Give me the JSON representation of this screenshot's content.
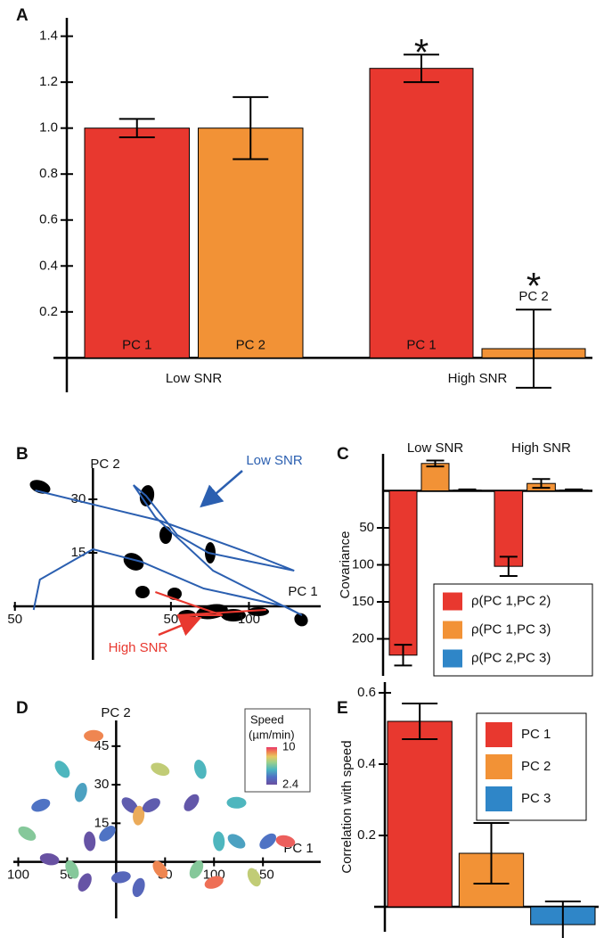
{
  "chart_data": [
    {
      "panel": "A",
      "type": "bar",
      "categories": [
        "Low SNR",
        "High SNR"
      ],
      "series": [
        {
          "name": "PC 1",
          "color": "#e8382f",
          "values": [
            1.0,
            1.26
          ],
          "errors": [
            0.04,
            0.06
          ],
          "annotations": [
            null,
            "*"
          ]
        },
        {
          "name": "PC 2",
          "color": "#f29236",
          "values": [
            1.0,
            0.04
          ],
          "errors": [
            0.135,
            0.17
          ],
          "annotations": [
            null,
            "*"
          ]
        }
      ],
      "ylim": [
        -0.15,
        1.48
      ],
      "yticks": [
        0.2,
        0.4,
        0.6,
        0.8,
        {
          "value": 1.0,
          "label": "1.0"
        },
        1.2,
        1.4
      ]
    },
    {
      "panel": "B",
      "type": "line",
      "xlabel": "PC 1",
      "ylabel": "PC 2",
      "xlim": [
        -51,
        146
      ],
      "ylim": [
        -15,
        38.75
      ],
      "xticks": [
        {
          "value": -50,
          "label": "50"
        },
        50,
        100
      ],
      "yticks": [
        15,
        30
      ],
      "series": [
        {
          "name": "Low SNR",
          "color": "#2b5fb0",
          "x": [
            -38,
            -34,
            0,
            31,
            71,
            123,
            134,
            111,
            77,
            40,
            26,
            34,
            54,
            74,
            129,
            100,
            43,
            -37
          ],
          "y": [
            -1,
            7.5,
            16,
            12.5,
            5,
            0,
            -2.5,
            2.5,
            10,
            25,
            34,
            31,
            20,
            15,
            10,
            15,
            24,
            32.5
          ]
        },
        {
          "name": "High SNR",
          "color": "#e8382f",
          "x": [
            40,
            66,
            83,
            54,
            111
          ],
          "y": [
            4,
            0,
            -2.5,
            -2.5,
            -1
          ]
        }
      ]
    },
    {
      "panel": "C",
      "type": "bar",
      "ylabel": "Covariance",
      "categories": [
        "Low SNR",
        "High SNR"
      ],
      "y_inverted": true,
      "ylim": [
        -50,
        250
      ],
      "yticks": [
        50,
        100,
        150,
        200
      ],
      "legend": true,
      "series": [
        {
          "name": "ρ(PC 1,PC 2)",
          "color": "#e8382f",
          "values": [
            222,
            102
          ],
          "errors": [
            14,
            13
          ]
        },
        {
          "name": "ρ(PC 1,PC 3)",
          "color": "#f29236",
          "values": [
            -37,
            -10
          ],
          "errors": [
            4,
            6
          ]
        },
        {
          "name": "ρ(PC 2,PC 3)",
          "color": "#2f86c8",
          "values": [
            -1,
            -1
          ],
          "errors": [
            1,
            1
          ]
        }
      ]
    },
    {
      "panel": "D",
      "type": "scatter",
      "xlabel": "PC 1",
      "ylabel": "PC 2",
      "xlim": [
        -105,
        209
      ],
      "ylim": [
        -22,
        55
      ],
      "xticks": [
        {
          "value": -100,
          "label": "100"
        },
        {
          "value": -50,
          "label": "50"
        },
        50,
        100,
        150
      ],
      "yticks": [
        15,
        30,
        45
      ],
      "colorbar": {
        "title": "Speed",
        "unit": "(µm/min)",
        "lim": [
          2.4,
          10
        ],
        "ticks": [
          10,
          2.4
        ]
      },
      "series": [
        {
          "x": [
            -23,
            -55,
            -36,
            -77,
            -91,
            -27,
            -9,
            -68,
            -45,
            -32,
            5,
            14,
            23,
            36,
            45,
            86,
            77,
            123,
            45,
            23,
            100,
            123,
            105,
            155,
            173,
            141,
            82
          ],
          "y": [
            49,
            36,
            27,
            22,
            11,
            8,
            11,
            1,
            -3,
            -8,
            -6,
            22,
            18,
            22,
            36,
            36,
            23,
            23,
            -3,
            -10,
            -8,
            8,
            8,
            8,
            8,
            -6,
            -3
          ],
          "speed": [
            9,
            5.5,
            5,
            4,
            6.5,
            2.6,
            4,
            2.5,
            6.5,
            2.6,
            3.5,
            3,
            8.5,
            3,
            7.5,
            5.5,
            2.8,
            5.5,
            9,
            3.5,
            9.3,
            5,
            5.5,
            4,
            9.5,
            7.5,
            6.5
          ]
        }
      ]
    },
    {
      "panel": "E",
      "type": "bar",
      "ylabel": "Correlation with speed",
      "categories": [
        null
      ],
      "ylim": [
        -0.07,
        0.63
      ],
      "yticks": [
        0.2,
        0.4,
        0.6
      ],
      "legend": true,
      "series": [
        {
          "name": "PC 1",
          "color": "#e8382f",
          "values": [
            0.52
          ],
          "errors": [
            0.05
          ]
        },
        {
          "name": "PC 2",
          "color": "#f29236",
          "values": [
            0.15
          ],
          "errors": [
            0.085
          ]
        },
        {
          "name": "PC 3",
          "color": "#2f86c8",
          "values": [
            -0.05
          ],
          "errors": [
            0.065
          ]
        }
      ]
    }
  ]
}
